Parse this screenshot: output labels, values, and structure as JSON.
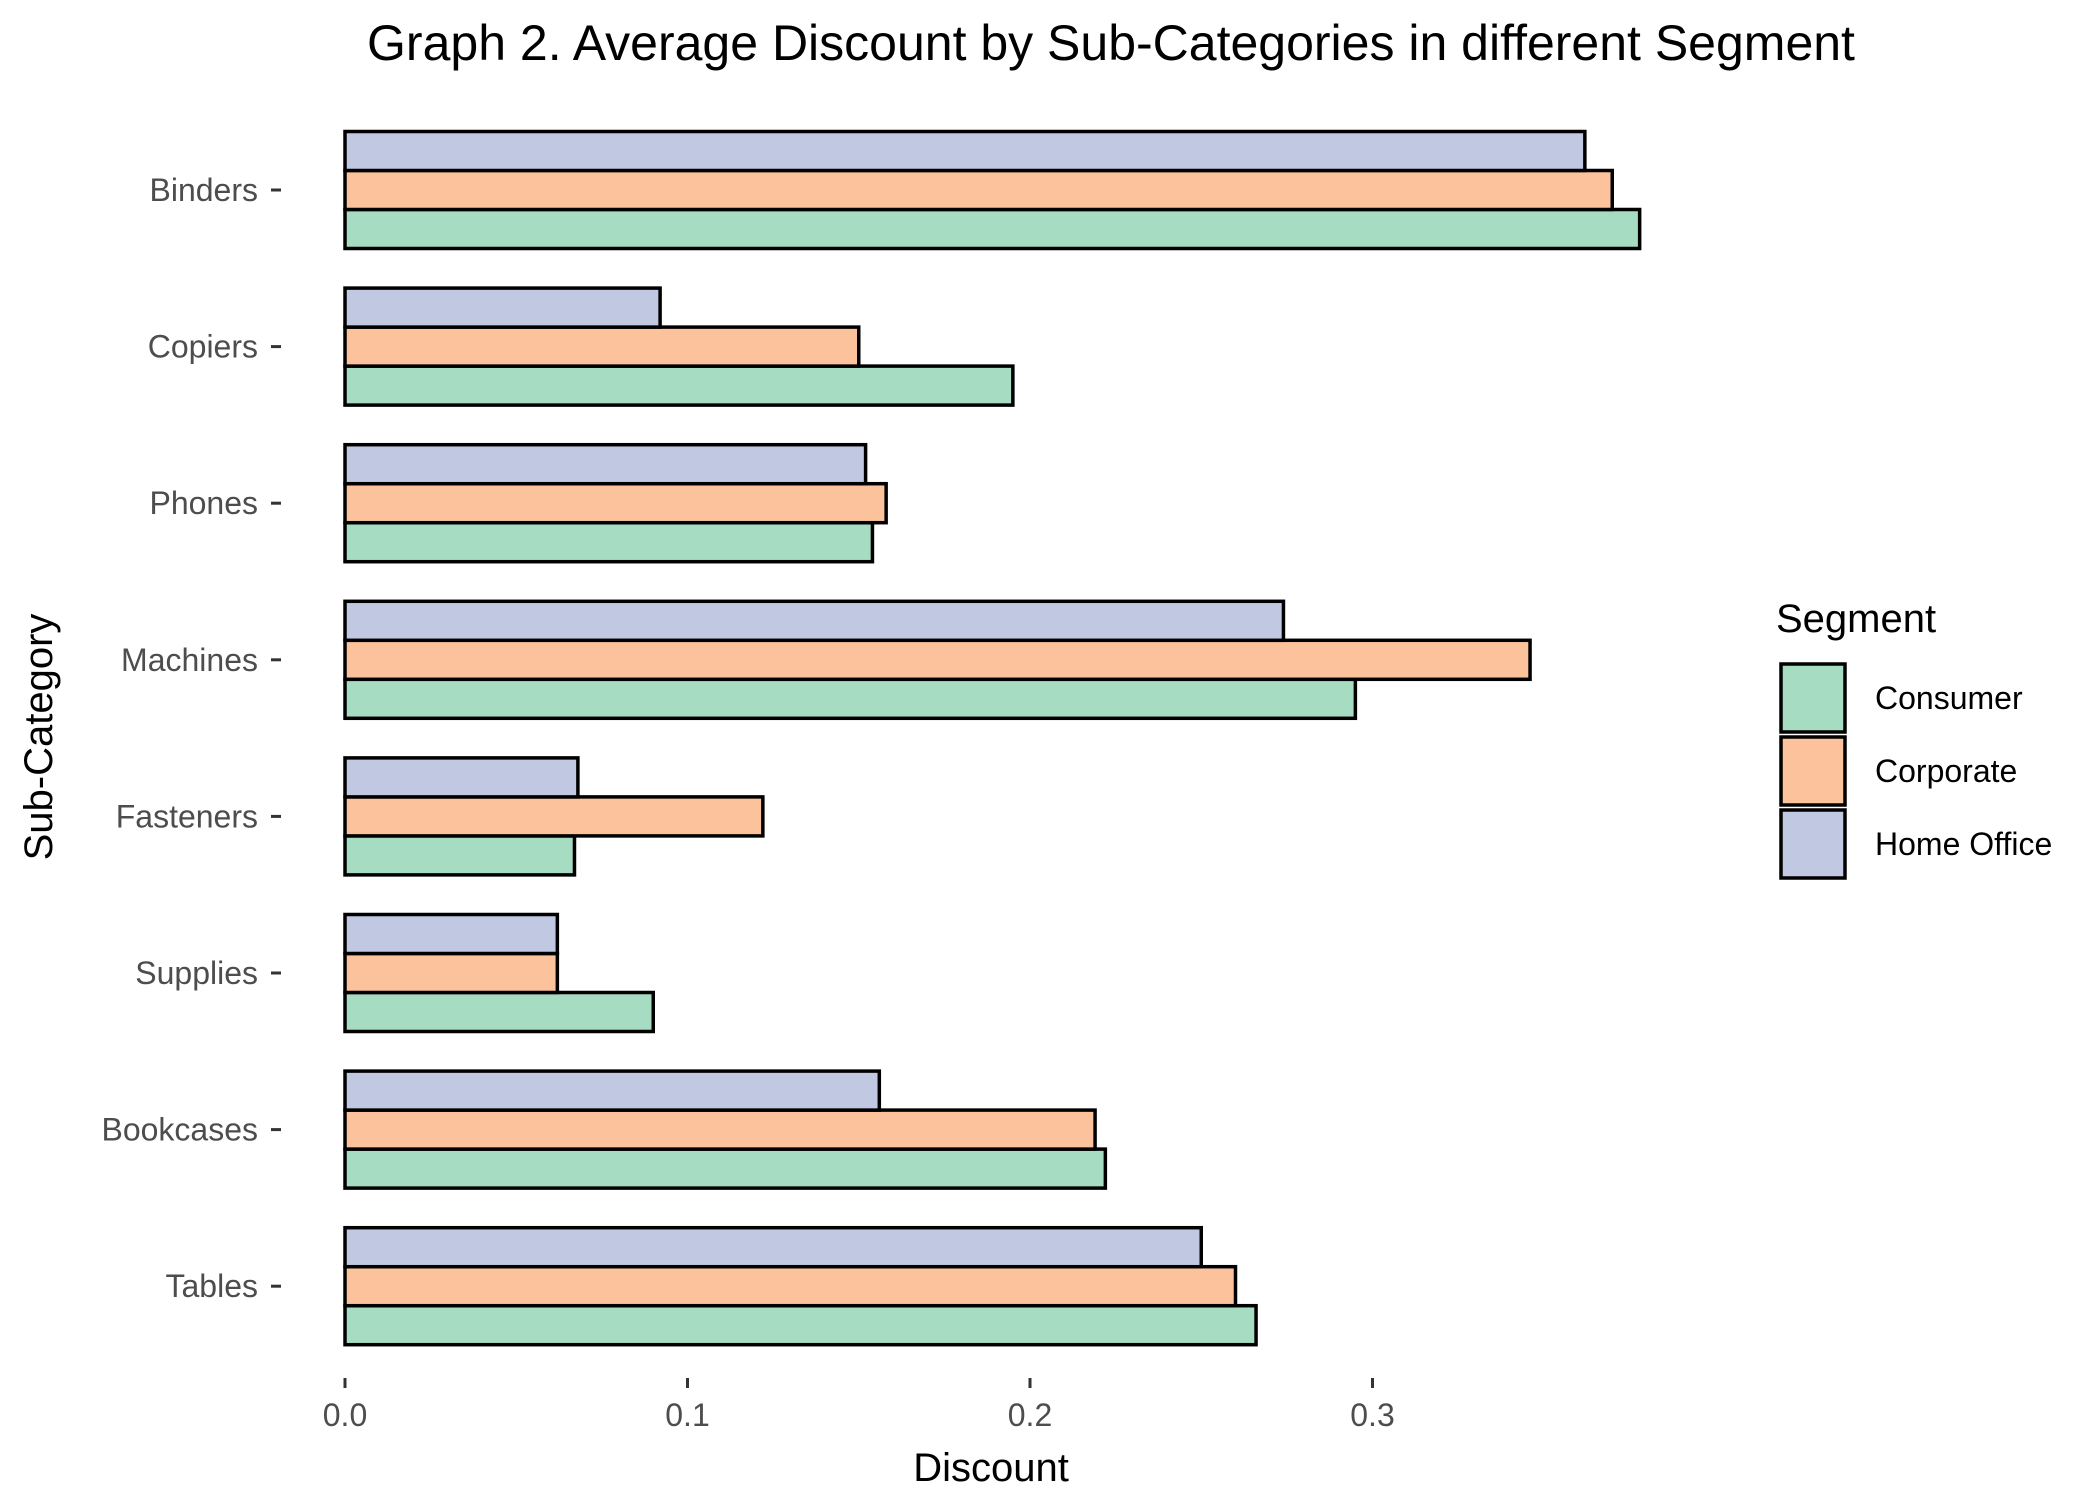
{
  "chart_data": {
    "type": "bar",
    "orientation": "horizontal",
    "title": "Graph 2. Average Discount by Sub-Categories in different Segment",
    "xlabel": "Discount",
    "ylabel": "Sub-Category",
    "xlim": [
      0,
      0.39
    ],
    "xticks": [
      0.0,
      0.1,
      0.2,
      0.3
    ],
    "xtick_labels": [
      "0.0",
      "0.1",
      "0.2",
      "0.3"
    ],
    "grid": false,
    "legend_title": "Segment",
    "legend_position": "right",
    "categories": [
      "Binders",
      "Copiers",
      "Phones",
      "Machines",
      "Fasteners",
      "Supplies",
      "Bookcases",
      "Tables"
    ],
    "series": [
      {
        "name": "Consumer",
        "color": "#a6dcc1",
        "values": [
          0.378,
          0.195,
          0.154,
          0.295,
          0.067,
          0.09,
          0.222,
          0.266
        ]
      },
      {
        "name": "Corporate",
        "color": "#fcc29b",
        "values": [
          0.37,
          0.15,
          0.158,
          0.346,
          0.122,
          0.062,
          0.219,
          0.26
        ]
      },
      {
        "name": "Home Office",
        "color": "#c1c9e2",
        "values": [
          0.362,
          0.092,
          0.152,
          0.274,
          0.068,
          0.062,
          0.156,
          0.25
        ]
      }
    ]
  }
}
